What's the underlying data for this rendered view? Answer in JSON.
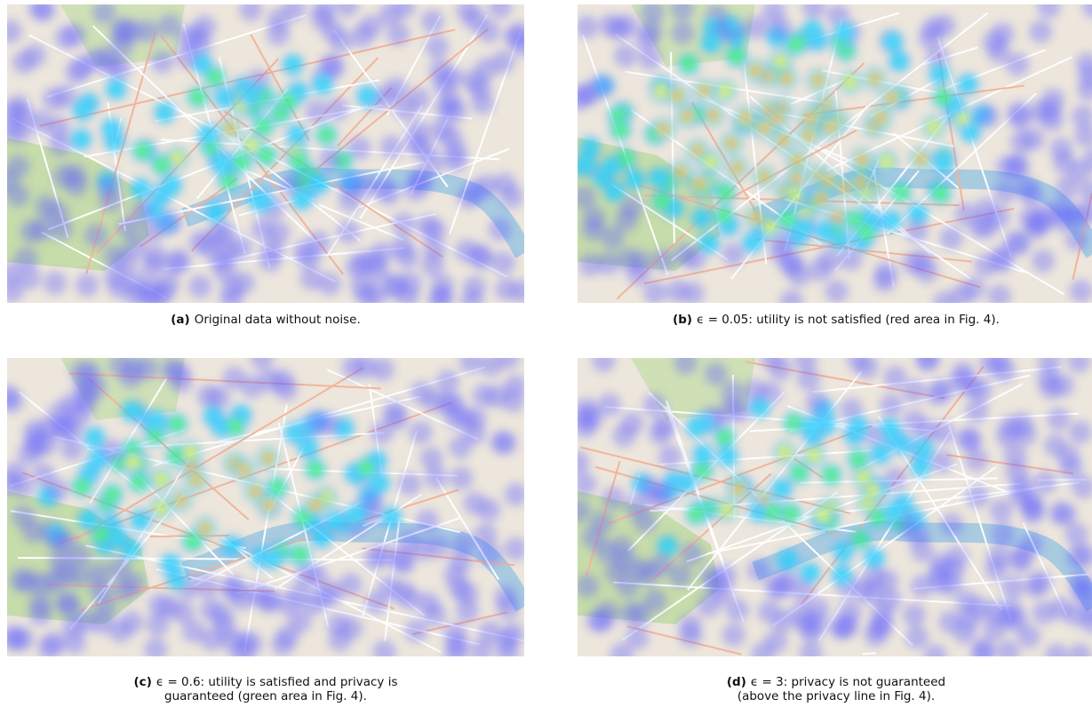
{
  "figures": [
    {
      "label": "(a)",
      "caption": [
        "Original data without noise."
      ]
    },
    {
      "label": "(b)",
      "caption": [
        "ϵ = 0.05: utility is not satisfied (red area in Fig. 4)."
      ]
    },
    {
      "label": "(c)",
      "caption": [
        "ϵ = 0.6: utility is satisfied and privacy is",
        "guaranteed (green area in Fig. 4)."
      ]
    },
    {
      "label": "(d)",
      "caption": [
        "ϵ = 3: privacy is not guaranteed",
        "(above the privacy line in Fig. 4)."
      ]
    }
  ]
}
